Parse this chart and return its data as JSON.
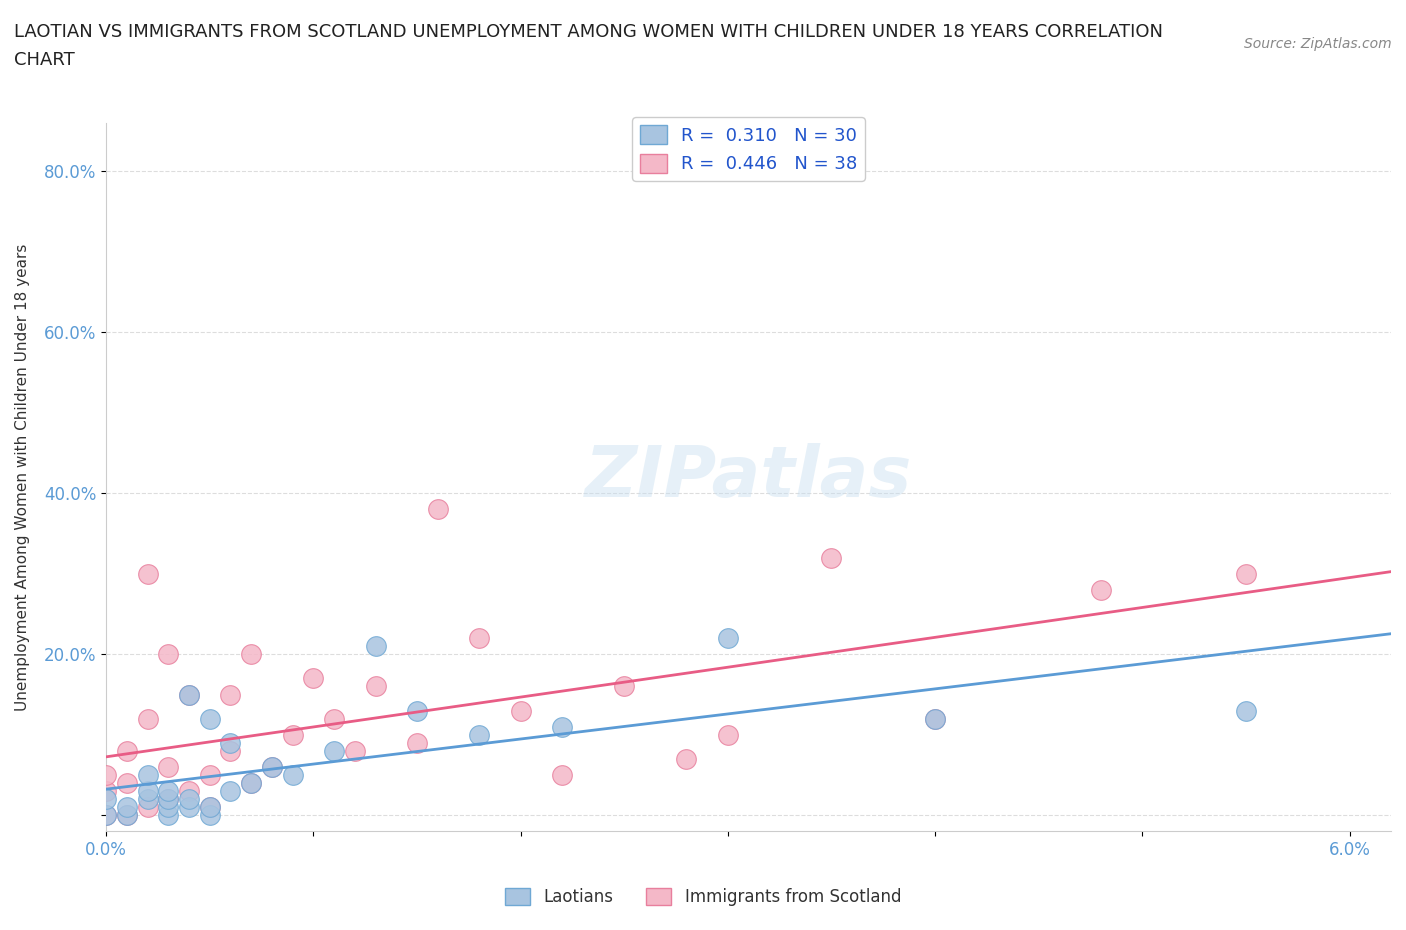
{
  "title_line1": "LAOTIAN VS IMMIGRANTS FROM SCOTLAND UNEMPLOYMENT AMONG WOMEN WITH CHILDREN UNDER 18 YEARS CORRELATION",
  "title_line2": "CHART",
  "source_text": "Source: ZipAtlas.com",
  "ylabel": "Unemployment Among Women with Children Under 18 years",
  "xlim": [
    0.0,
    0.062
  ],
  "ylim": [
    -0.02,
    0.86
  ],
  "x_ticks": [
    0.0,
    0.01,
    0.02,
    0.03,
    0.04,
    0.05,
    0.06
  ],
  "x_tick_labels": [
    "0.0%",
    "",
    "",
    "",
    "",
    "",
    "6.0%"
  ],
  "y_ticks": [
    0.0,
    0.2,
    0.4,
    0.6,
    0.8
  ],
  "y_tick_labels": [
    "",
    "20.0%",
    "40.0%",
    "60.0%",
    "80.0%"
  ],
  "background_color": "#ffffff",
  "grid_color": "#dddddd",
  "laotian_color": "#a8c4e0",
  "laotian_edge_color": "#6fa8d4",
  "laotian_line_color": "#5b9bd5",
  "laotian_R": 0.31,
  "laotian_N": 30,
  "scotland_color": "#f4b8c8",
  "scotland_edge_color": "#e87f9d",
  "scotland_line_color": "#e85c85",
  "scotland_R": 0.446,
  "scotland_N": 38,
  "laotian_x": [
    0.0,
    0.0,
    0.001,
    0.001,
    0.002,
    0.002,
    0.002,
    0.003,
    0.003,
    0.003,
    0.003,
    0.004,
    0.004,
    0.004,
    0.005,
    0.005,
    0.005,
    0.006,
    0.006,
    0.007,
    0.008,
    0.009,
    0.011,
    0.013,
    0.015,
    0.018,
    0.022,
    0.03,
    0.04,
    0.055
  ],
  "laotian_y": [
    0.0,
    0.02,
    0.0,
    0.01,
    0.02,
    0.03,
    0.05,
    0.0,
    0.01,
    0.02,
    0.03,
    0.01,
    0.02,
    0.15,
    0.0,
    0.01,
    0.12,
    0.03,
    0.09,
    0.04,
    0.06,
    0.05,
    0.08,
    0.21,
    0.13,
    0.1,
    0.11,
    0.22,
    0.12,
    0.13
  ],
  "scotland_x": [
    0.0,
    0.0,
    0.0,
    0.001,
    0.001,
    0.001,
    0.002,
    0.002,
    0.002,
    0.003,
    0.003,
    0.003,
    0.004,
    0.004,
    0.005,
    0.005,
    0.006,
    0.006,
    0.007,
    0.007,
    0.008,
    0.009,
    0.01,
    0.011,
    0.012,
    0.013,
    0.015,
    0.016,
    0.018,
    0.02,
    0.022,
    0.025,
    0.028,
    0.03,
    0.035,
    0.04,
    0.048,
    0.055
  ],
  "scotland_y": [
    0.0,
    0.03,
    0.05,
    0.0,
    0.04,
    0.08,
    0.01,
    0.12,
    0.3,
    0.02,
    0.06,
    0.2,
    0.03,
    0.15,
    0.01,
    0.05,
    0.08,
    0.15,
    0.04,
    0.2,
    0.06,
    0.1,
    0.17,
    0.12,
    0.08,
    0.16,
    0.09,
    0.38,
    0.22,
    0.13,
    0.05,
    0.16,
    0.07,
    0.1,
    0.32,
    0.12,
    0.28,
    0.3
  ]
}
